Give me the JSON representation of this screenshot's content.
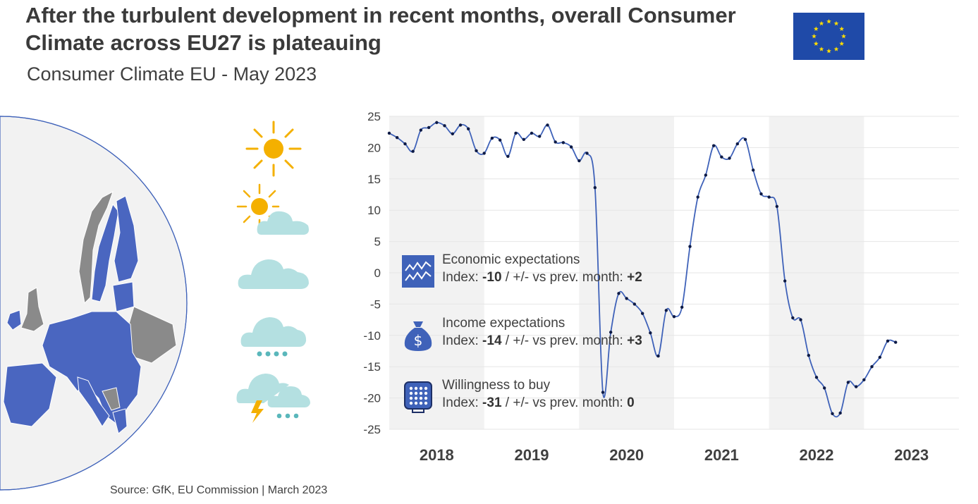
{
  "header": {
    "title": "After the turbulent development in recent months, overall Consumer Climate across EU27 is plateauing",
    "subtitle": "Consumer Climate EU - May 2023"
  },
  "source": "Source: GfK, EU Commission | March 2023",
  "colors": {
    "line": "#3f62b9",
    "marker": "#0d1a45",
    "shade": "#f2f2f2",
    "eu_blue": "#1f4aa8",
    "eu_star": "#ffdd00",
    "sun": "#f4b000",
    "cloud": "#b4e0e1"
  },
  "weather_icons": [
    "sun-icon",
    "sun-cloud-icon",
    "cloud-icon",
    "rain-cloud-icon",
    "storm-cloud-icon"
  ],
  "legend": [
    {
      "icon": "chart-zigzag-icon",
      "name": "Economic expectations",
      "prefix": "Index: ",
      "index": "-10",
      "mid": " / +/- vs prev. month: ",
      "change": "+2"
    },
    {
      "icon": "money-bag-icon",
      "name": "Income expectations",
      "prefix": "Index: ",
      "index": "-14",
      "mid": " / +/- vs prev. month: ",
      "change": "+3"
    },
    {
      "icon": "keypad-icon",
      "name": "Willingness to buy",
      "prefix": "Index: ",
      "index": "-31",
      "mid": " / +/- vs prev. month: ",
      "change": "0"
    }
  ],
  "chart_data": {
    "type": "line",
    "title": "Consumer Climate EU",
    "ylim": [
      -25,
      25
    ],
    "yticks": [
      25,
      20,
      15,
      10,
      5,
      0,
      -5,
      -10,
      -15,
      -20,
      -25
    ],
    "year_labels": [
      "2018",
      "2019",
      "2020",
      "2021",
      "2022",
      "2023"
    ],
    "shaded_years": [
      "2018",
      "2020",
      "2022"
    ],
    "xlim": [
      2018.0,
      2024.0
    ],
    "series": [
      {
        "name": "Consumer Climate",
        "x": [
          2018.0,
          2018.083,
          2018.167,
          2018.25,
          2018.333,
          2018.417,
          2018.5,
          2018.583,
          2018.667,
          2018.75,
          2018.833,
          2018.917,
          2019.0,
          2019.083,
          2019.167,
          2019.25,
          2019.333,
          2019.417,
          2019.5,
          2019.583,
          2019.667,
          2019.75,
          2019.833,
          2019.917,
          2020.0,
          2020.083,
          2020.167,
          2020.25,
          2020.333,
          2020.417,
          2020.5,
          2020.583,
          2020.667,
          2020.75,
          2020.833,
          2020.917,
          2021.0,
          2021.083,
          2021.167,
          2021.25,
          2021.333,
          2021.417,
          2021.5,
          2021.583,
          2021.667,
          2021.75,
          2021.833,
          2021.917,
          2022.0,
          2022.083,
          2022.167,
          2022.25,
          2022.333,
          2022.417,
          2022.5,
          2022.583,
          2022.667,
          2022.75,
          2022.833,
          2022.917,
          2023.0,
          2023.083,
          2023.167,
          2023.25,
          2023.333
        ],
        "values": [
          22.3,
          21.6,
          20.6,
          19.4,
          22.8,
          23.2,
          24.0,
          23.5,
          22.2,
          23.6,
          23.0,
          19.5,
          19.1,
          21.5,
          21.2,
          18.6,
          22.3,
          21.3,
          22.3,
          21.8,
          23.6,
          20.9,
          20.8,
          20.1,
          17.9,
          19.1,
          13.6,
          -19.1,
          -9.5,
          -3.3,
          -4.1,
          -5.0,
          -6.5,
          -9.6,
          -13.3,
          -6.0,
          -7.0,
          -5.5,
          4.2,
          12.1,
          15.6,
          20.3,
          18.5,
          18.3,
          20.6,
          21.3,
          16.4,
          12.6,
          12.1,
          10.6,
          -1.3,
          -7.2,
          -7.5,
          -13.2,
          -16.7,
          -18.4,
          -22.5,
          -22.4,
          -17.5,
          -18.2,
          -17.1,
          -15.0,
          -13.5,
          -10.9,
          -11.1
        ]
      }
    ]
  }
}
